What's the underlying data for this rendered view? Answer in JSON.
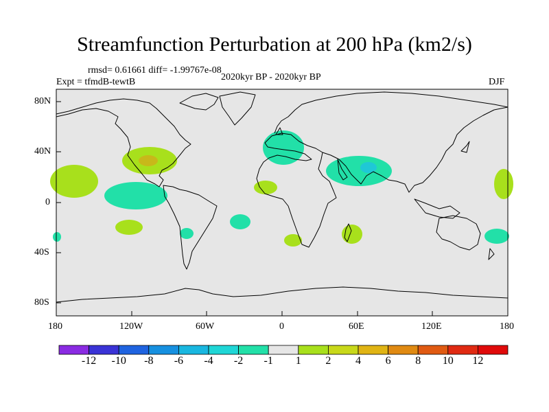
{
  "title": "Streamfunction Perturbation at 200 hPa (km2/s)",
  "stats": "rmsd= 0.61661 diff= -1.99767e-08",
  "experiment": "Expt = tfmdB-tewtB",
  "period": "2020kyr BP - 2020kyr BP",
  "season": "DJF",
  "lat_ticks": [
    "80N",
    "40N",
    "0",
    "40S",
    "80S"
  ],
  "lon_ticks": [
    "180",
    "120W",
    "60W",
    "0",
    "60E",
    "120E",
    "180"
  ],
  "colorbar": {
    "labels": [
      "-12",
      "-10",
      "-8",
      "-6",
      "-4",
      "-2",
      "-1",
      "1",
      "2",
      "4",
      "6",
      "8",
      "10",
      "12"
    ],
    "colors": [
      "#8a2be2",
      "#3a33d6",
      "#1f63e0",
      "#1690e0",
      "#19b7e0",
      "#1fd6d6",
      "#22e0a8",
      "#e6e6e6",
      "#a8e01c",
      "#c8d81a",
      "#e0b414",
      "#e08a12",
      "#e05a12",
      "#e02a12",
      "#e00a0a"
    ]
  },
  "colors": {
    "background": "#e6e6e6",
    "positive_weak": "#a8e01c",
    "negative_weak": "#22e0a8",
    "positive_mid": "#c8b81a",
    "negative_mid": "#1fc8d6"
  }
}
